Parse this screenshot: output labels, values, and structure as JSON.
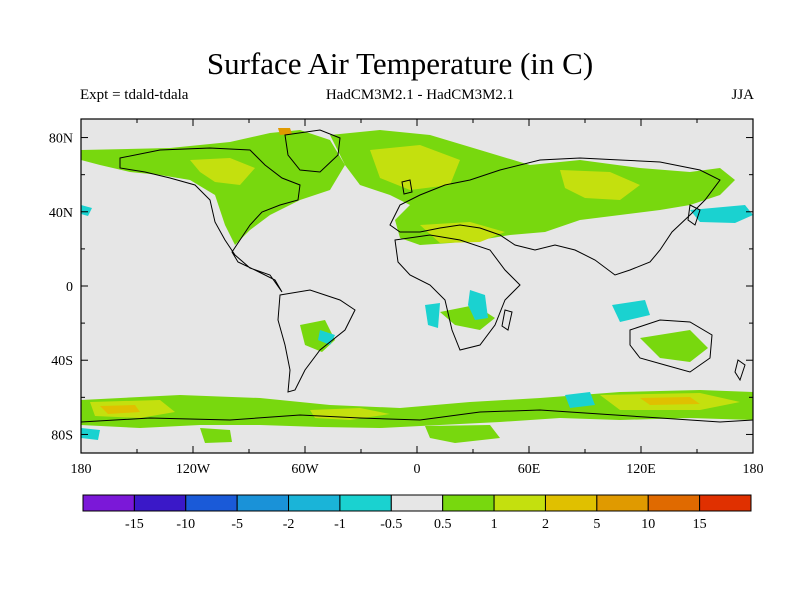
{
  "header": {
    "title": "Surface Air Temperature (in C)",
    "experiment": "Expt = tdald-tdala",
    "models": "HadCM3M2.1 - HadCM3M2.1",
    "season": "JJA"
  },
  "axes": {
    "lat_labels": [
      "80N",
      "40N",
      "0",
      "40S",
      "80S"
    ],
    "lat_values": [
      80,
      40,
      0,
      -40,
      -80
    ],
    "lon_labels": [
      "180",
      "120W",
      "60W",
      "0",
      "60E",
      "120E",
      "180"
    ],
    "lon_values": [
      -180,
      -120,
      -60,
      0,
      60,
      120,
      180
    ]
  },
  "colorbar": {
    "colors": [
      "#7b18d8",
      "#3a18c8",
      "#1a5ad8",
      "#1a92d8",
      "#1ab4d8",
      "#1ad2d0",
      "#e6e6e6",
      "#78d80e",
      "#c4e00e",
      "#e0c000",
      "#e09a00",
      "#e06a00",
      "#e03000"
    ],
    "labels": [
      "-15",
      "-10",
      "-5",
      "-2",
      "-1",
      "-0.5",
      "0.5",
      "1",
      "2",
      "5",
      "10",
      "15"
    ]
  },
  "colors": {
    "background": "#e6e6e6",
    "land_outline": "#000000",
    "warm_1": "#78d80e",
    "warm_2": "#c4e00e",
    "warm_3": "#e0c000",
    "warm_4": "#e09a00",
    "cold_1": "#1ad2d0"
  }
}
